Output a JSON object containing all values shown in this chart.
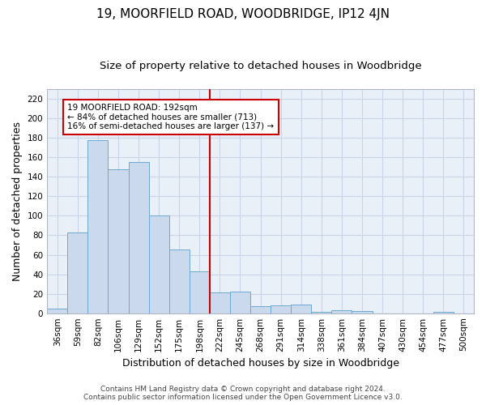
{
  "title": "19, MOORFIELD ROAD, WOODBRIDGE, IP12 4JN",
  "subtitle": "Size of property relative to detached houses in Woodbridge",
  "xlabel": "Distribution of detached houses by size in Woodbridge",
  "ylabel": "Number of detached properties",
  "categories": [
    "36sqm",
    "59sqm",
    "82sqm",
    "106sqm",
    "129sqm",
    "152sqm",
    "175sqm",
    "198sqm",
    "222sqm",
    "245sqm",
    "268sqm",
    "291sqm",
    "314sqm",
    "338sqm",
    "361sqm",
    "384sqm",
    "407sqm",
    "430sqm",
    "454sqm",
    "477sqm",
    "500sqm"
  ],
  "bar_values": [
    5,
    83,
    178,
    148,
    155,
    100,
    65,
    43,
    21,
    22,
    7,
    8,
    9,
    1,
    3,
    2,
    0,
    0,
    0,
    1,
    0
  ],
  "bar_color": "#cad9ec",
  "bar_edge_color": "#6aaad4",
  "vline_position": 7.5,
  "vline_color": "#cc0000",
  "annotation_lines": [
    "19 MOORFIELD ROAD: 192sqm",
    "← 84% of detached houses are smaller (713)",
    "16% of semi-detached houses are larger (137) →"
  ],
  "annotation_box_color": "#cc0000",
  "ylim": [
    0,
    230
  ],
  "yticks": [
    0,
    20,
    40,
    60,
    80,
    100,
    120,
    140,
    160,
    180,
    200,
    220
  ],
  "grid_color": "#c8d4e8",
  "bg_color": "#eaf0f8",
  "footer_line1": "Contains HM Land Registry data © Crown copyright and database right 2024.",
  "footer_line2": "Contains public sector information licensed under the Open Government Licence v3.0.",
  "title_fontsize": 11,
  "subtitle_fontsize": 9.5,
  "axis_label_fontsize": 9,
  "tick_fontsize": 7.5,
  "footer_fontsize": 6.5
}
